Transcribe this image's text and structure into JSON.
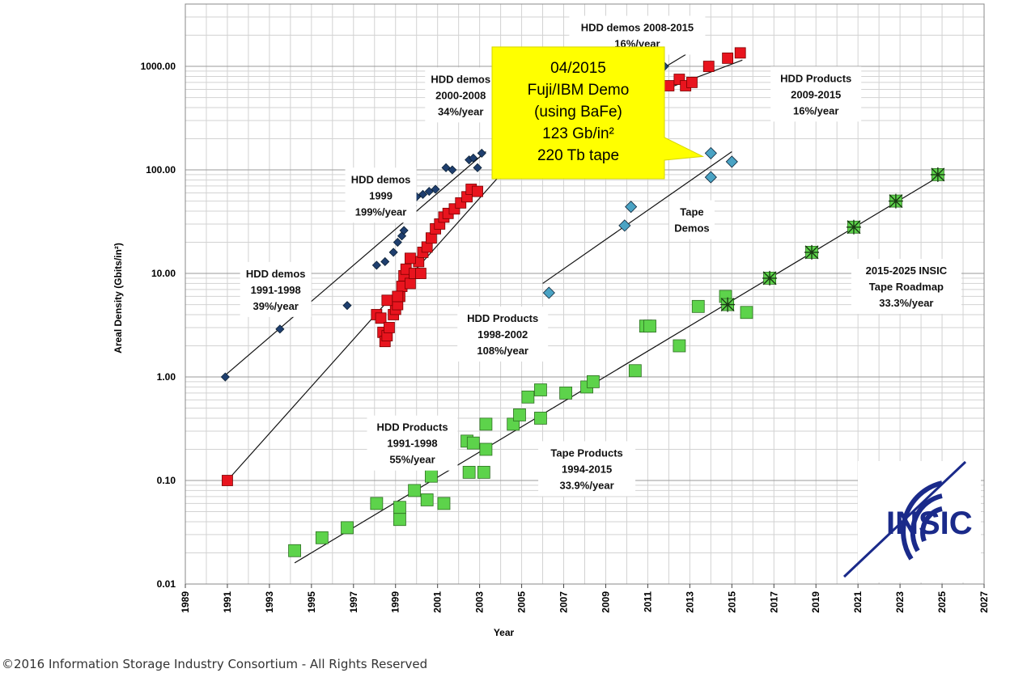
{
  "chart_data": {
    "type": "scatter",
    "y_scale": "log",
    "xlim": [
      1989,
      2027
    ],
    "ylim": [
      0.01,
      4000
    ],
    "xlabel": "Year",
    "ylabel": "Areal Density (Gbits/in²)",
    "x_ticks": [
      "1989",
      "1991",
      "1993",
      "1995",
      "1997",
      "1999",
      "2001",
      "2003",
      "2005",
      "2007",
      "2009",
      "2011",
      "2013",
      "2015",
      "2017",
      "2019",
      "2021",
      "2023",
      "2025",
      "2027"
    ],
    "y_ticks": [
      {
        "value": 0.01,
        "label": "0.01"
      },
      {
        "value": 0.1,
        "label": "0.10"
      },
      {
        "value": 1,
        "label": "1.00"
      },
      {
        "value": 10,
        "label": "10.00"
      },
      {
        "value": 100,
        "label": "100.00"
      },
      {
        "value": 1000,
        "label": "1000.00"
      }
    ],
    "grid": true,
    "series": [
      {
        "key": "hdd_demos",
        "marker": "diamond",
        "color": "#1f3f6f",
        "points": [
          [
            1990.9,
            1.0
          ],
          [
            1993.5,
            2.9
          ],
          [
            1996.7,
            4.9
          ],
          [
            1998.1,
            12
          ],
          [
            1998.5,
            13
          ],
          [
            1998.9,
            16
          ],
          [
            1999.1,
            20
          ],
          [
            1999.3,
            23
          ],
          [
            1999.4,
            26
          ],
          [
            1999.6,
            35
          ],
          [
            1999.8,
            45
          ],
          [
            2000.0,
            55
          ],
          [
            2000.3,
            58
          ],
          [
            2000.6,
            62
          ],
          [
            2000.9,
            65
          ],
          [
            2001.4,
            105
          ],
          [
            2001.7,
            100
          ],
          [
            2002.5,
            125
          ],
          [
            2002.7,
            130
          ],
          [
            2002.9,
            105
          ],
          [
            2003.1,
            145
          ],
          [
            2011.8,
            1000
          ],
          [
            2012.6,
            1500
          ]
        ]
      },
      {
        "key": "hdd_products",
        "marker": "square",
        "color": "#e8141e",
        "points": [
          [
            1991.0,
            0.1
          ],
          [
            1998.1,
            4.0
          ],
          [
            1998.3,
            3.7
          ],
          [
            1998.4,
            2.7
          ],
          [
            1998.5,
            2.2
          ],
          [
            1998.6,
            2.5
          ],
          [
            1998.7,
            3.0
          ],
          [
            1998.9,
            4.0
          ],
          [
            1999.0,
            4.5
          ],
          [
            1999.1,
            5.0
          ],
          [
            1999.2,
            6.0
          ],
          [
            1999.3,
            7.5
          ],
          [
            1999.4,
            9.5
          ],
          [
            1999.5,
            11
          ],
          [
            1999.7,
            8.0
          ],
          [
            1999.9,
            10
          ],
          [
            2000.1,
            13
          ],
          [
            2000.3,
            16
          ],
          [
            2000.5,
            18
          ],
          [
            2000.7,
            22
          ],
          [
            2000.9,
            27
          ],
          [
            2001.1,
            30
          ],
          [
            2001.3,
            35
          ],
          [
            2001.5,
            38
          ],
          [
            2001.8,
            42
          ],
          [
            2002.1,
            48
          ],
          [
            2002.4,
            55
          ],
          [
            2002.6,
            65
          ],
          [
            2002.9,
            62
          ],
          [
            1998.6,
            5.5
          ],
          [
            1999.1,
            6.0
          ],
          [
            1999.7,
            14
          ],
          [
            2000.2,
            10
          ],
          [
            2012.0,
            650
          ],
          [
            2012.5,
            750
          ],
          [
            2012.8,
            650
          ],
          [
            2013.1,
            700
          ],
          [
            2013.9,
            1000
          ],
          [
            2014.8,
            1200
          ],
          [
            2015.4,
            1350
          ]
        ]
      },
      {
        "key": "tape_demos",
        "marker": "diamond",
        "color": "#4aa3c4",
        "points": [
          [
            2006.3,
            6.5
          ],
          [
            2009.9,
            29
          ],
          [
            2010.2,
            44
          ],
          [
            2014.0,
            145
          ],
          [
            2014.0,
            85
          ],
          [
            2015.0,
            120
          ]
        ]
      },
      {
        "key": "tape_products",
        "marker": "square",
        "color": "#5dd34b",
        "points": [
          [
            1994.2,
            0.021
          ],
          [
            1995.5,
            0.028
          ],
          [
            1996.7,
            0.035
          ],
          [
            1998.1,
            0.06
          ],
          [
            1999.2,
            0.055
          ],
          [
            1999.2,
            0.042
          ],
          [
            1999.9,
            0.08
          ],
          [
            2000.5,
            0.065
          ],
          [
            2000.7,
            0.11
          ],
          [
            2001.3,
            0.06
          ],
          [
            2002.4,
            0.24
          ],
          [
            2002.7,
            0.23
          ],
          [
            2002.5,
            0.12
          ],
          [
            2003.2,
            0.12
          ],
          [
            2003.3,
            0.2
          ],
          [
            2003.3,
            0.35
          ],
          [
            2004.6,
            0.35
          ],
          [
            2004.9,
            0.43
          ],
          [
            2005.3,
            0.64
          ],
          [
            2005.9,
            0.4
          ],
          [
            2005.9,
            0.75
          ],
          [
            2007.1,
            0.7
          ],
          [
            2008.1,
            0.8
          ],
          [
            2008.4,
            0.9
          ],
          [
            2010.4,
            1.15
          ],
          [
            2010.9,
            3.1
          ],
          [
            2011.1,
            3.1
          ],
          [
            2012.5,
            2.0
          ],
          [
            2013.4,
            4.8
          ],
          [
            2014.7,
            6.0
          ],
          [
            2015.7,
            4.2
          ]
        ]
      },
      {
        "key": "insic_roadmap",
        "marker": "star",
        "color": "#5dd34b",
        "points": [
          [
            2014.8,
            5.0
          ],
          [
            2016.8,
            9.0
          ],
          [
            2018.8,
            16
          ],
          [
            2020.8,
            28
          ],
          [
            2022.8,
            50
          ],
          [
            2024.8,
            90
          ]
        ]
      }
    ],
    "trendlines": [
      {
        "from": [
          1990.8,
          1.0
        ],
        "to": [
          2003.3,
          150
        ]
      },
      {
        "from": [
          1991.0,
          0.1
        ],
        "to": [
          2004.0,
          90
        ]
      },
      {
        "from": [
          2006.0,
          8.0
        ],
        "to": [
          2015.0,
          150
        ]
      },
      {
        "from": [
          1994.2,
          0.016
        ],
        "to": [
          2025.0,
          90
        ]
      },
      {
        "from": [
          2011.5,
          900
        ],
        "to": [
          2012.8,
          1300
        ]
      },
      {
        "from": [
          2012.0,
          620
        ],
        "to": [
          2015.5,
          1150
        ]
      }
    ],
    "annotations": [
      {
        "lines": [
          "HDD demos 2008-2015",
          "16%/year"
        ],
        "x": 2010.5,
        "y": 2000
      },
      {
        "lines": [
          "HDD demos",
          "2000-2008",
          "34%/year"
        ],
        "x": 2002.1,
        "y": 530
      },
      {
        "lines": [
          "HDD Products",
          "2009-2015",
          "16%/year"
        ],
        "x": 2019.0,
        "y": 540
      },
      {
        "lines": [
          "HDD demos",
          "1999",
          "199%/year"
        ],
        "x": 1998.3,
        "y": 57
      },
      {
        "lines": [
          "HDD demos",
          "1991-1998",
          "39%/year"
        ],
        "x": 1993.3,
        "y": 7.0
      },
      {
        "lines": [
          "Tape",
          "Demos"
        ],
        "x": 2013.1,
        "y": 33
      },
      {
        "lines": [
          "HDD Products",
          "1998-2002",
          "108%/year"
        ],
        "x": 2004.1,
        "y": 2.6
      },
      {
        "lines": [
          "2015-2025 INSIC",
          "Tape Roadmap",
          "33.3%/year"
        ],
        "x": 2023.3,
        "y": 7.5
      },
      {
        "lines": [
          "HDD Products",
          "1991-1998",
          "55%/year"
        ],
        "x": 1999.8,
        "y": 0.23
      },
      {
        "lines": [
          "Tape Products",
          "1994-2015",
          "33.9%/year"
        ],
        "x": 2008.1,
        "y": 0.13
      }
    ],
    "callout": {
      "lines": [
        "04/2015",
        "Fuji/IBM Demo",
        "(using BaFe)",
        "123 Gb/in²",
        "220 Tb tape"
      ],
      "color": "#ffff00",
      "points_to": [
        2014.0,
        145
      ]
    }
  },
  "logo": {
    "text": "INSIC",
    "color": "#1a2a8a"
  },
  "footer": {
    "copyright": "©2016 Information Storage Industry Consortium - All Rights Reserved"
  }
}
